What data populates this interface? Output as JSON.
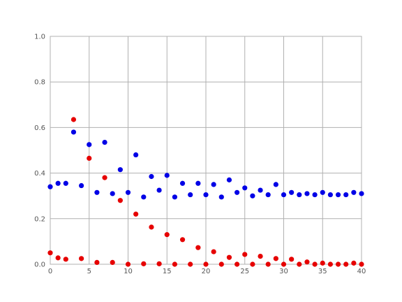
{
  "chart_data": {
    "type": "scatter",
    "xlim": [
      0,
      40
    ],
    "ylim": [
      0,
      1.0
    ],
    "grid": true,
    "x_ticks": [
      "0",
      "5",
      "10",
      "15",
      "20",
      "25",
      "30",
      "35",
      "40"
    ],
    "y_ticks": [
      "0.0",
      "0.2",
      "0.4",
      "0.6",
      "0.8",
      "1.0"
    ],
    "series": [
      {
        "color": "#0000e6",
        "points": [
          [
            0,
            0.34
          ],
          [
            1,
            0.355
          ],
          [
            2,
            0.355
          ],
          [
            3,
            0.58
          ],
          [
            4,
            0.345
          ],
          [
            5,
            0.525
          ],
          [
            6,
            0.315
          ],
          [
            7,
            0.535
          ],
          [
            8,
            0.31
          ],
          [
            9,
            0.415
          ],
          [
            10,
            0.315
          ],
          [
            11,
            0.48
          ],
          [
            12,
            0.295
          ],
          [
            13,
            0.385
          ],
          [
            14,
            0.325
          ],
          [
            15,
            0.39
          ],
          [
            16,
            0.295
          ],
          [
            17,
            0.355
          ],
          [
            18,
            0.305
          ],
          [
            19,
            0.355
          ],
          [
            20,
            0.305
          ],
          [
            21,
            0.35
          ],
          [
            22,
            0.295
          ],
          [
            23,
            0.37
          ],
          [
            24,
            0.315
          ],
          [
            25,
            0.335
          ],
          [
            26,
            0.3
          ],
          [
            27,
            0.325
          ],
          [
            28,
            0.305
          ],
          [
            29,
            0.35
          ],
          [
            30,
            0.305
          ],
          [
            31,
            0.315
          ],
          [
            32,
            0.305
          ],
          [
            33,
            0.31
          ],
          [
            34,
            0.305
          ],
          [
            35,
            0.315
          ],
          [
            36,
            0.305
          ],
          [
            37,
            0.305
          ],
          [
            38,
            0.305
          ],
          [
            39,
            0.315
          ],
          [
            40,
            0.31
          ]
        ]
      },
      {
        "color": "#e60000",
        "points": [
          [
            0,
            0.05
          ],
          [
            1,
            0.028
          ],
          [
            2,
            0.022
          ],
          [
            3,
            0.635
          ],
          [
            4,
            0.025
          ],
          [
            5,
            0.465
          ],
          [
            6,
            0.008
          ],
          [
            7,
            0.38
          ],
          [
            8,
            0.008
          ],
          [
            9,
            0.28
          ],
          [
            10,
            0.0
          ],
          [
            11,
            0.22
          ],
          [
            12,
            0.002
          ],
          [
            13,
            0.163
          ],
          [
            14,
            0.002
          ],
          [
            15,
            0.13
          ],
          [
            16,
            0.0
          ],
          [
            17,
            0.108
          ],
          [
            18,
            0.0
          ],
          [
            19,
            0.073
          ],
          [
            20,
            0.0
          ],
          [
            21,
            0.055
          ],
          [
            22,
            0.0
          ],
          [
            23,
            0.03
          ],
          [
            24,
            0.0
          ],
          [
            25,
            0.043
          ],
          [
            26,
            0.0
          ],
          [
            27,
            0.035
          ],
          [
            28,
            0.0
          ],
          [
            29,
            0.025
          ],
          [
            30,
            0.0
          ],
          [
            31,
            0.022
          ],
          [
            32,
            0.0
          ],
          [
            33,
            0.01
          ],
          [
            34,
            0.0
          ],
          [
            35,
            0.005
          ],
          [
            36,
            0.0
          ],
          [
            37,
            0.0
          ],
          [
            38,
            0.0
          ],
          [
            39,
            0.005
          ],
          [
            40,
            0.0
          ]
        ]
      }
    ]
  }
}
